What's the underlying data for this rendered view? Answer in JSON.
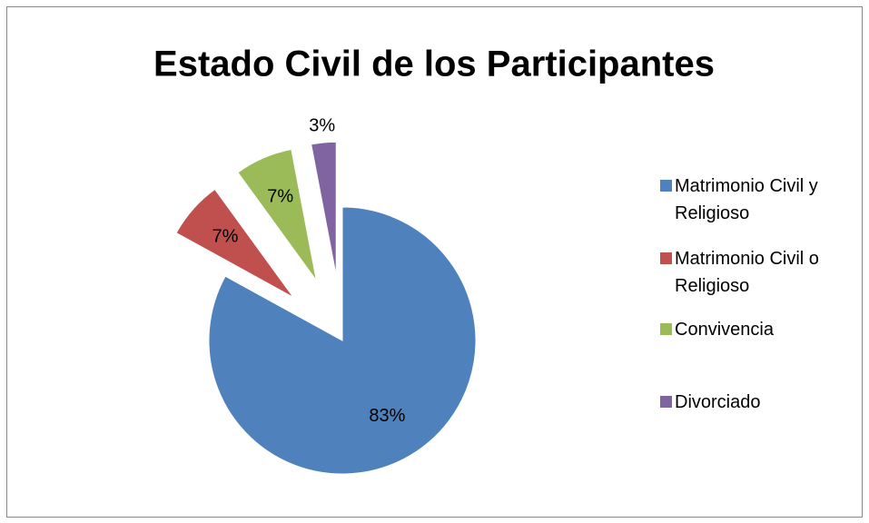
{
  "chart_data": {
    "type": "pie",
    "title": "Estado Civil de los Participantes",
    "categories": [
      "Matrimonio Civil y Religioso",
      "Matrimonio Civil o Religioso",
      "Convivencia",
      "Divorciado"
    ],
    "values": [
      83,
      7,
      7,
      3
    ],
    "value_labels": [
      "83%",
      "7%",
      "7%",
      "3%"
    ],
    "colors": [
      "#4f81bd",
      "#c0504d",
      "#9bbb59",
      "#8064a2"
    ],
    "legend": "right"
  }
}
